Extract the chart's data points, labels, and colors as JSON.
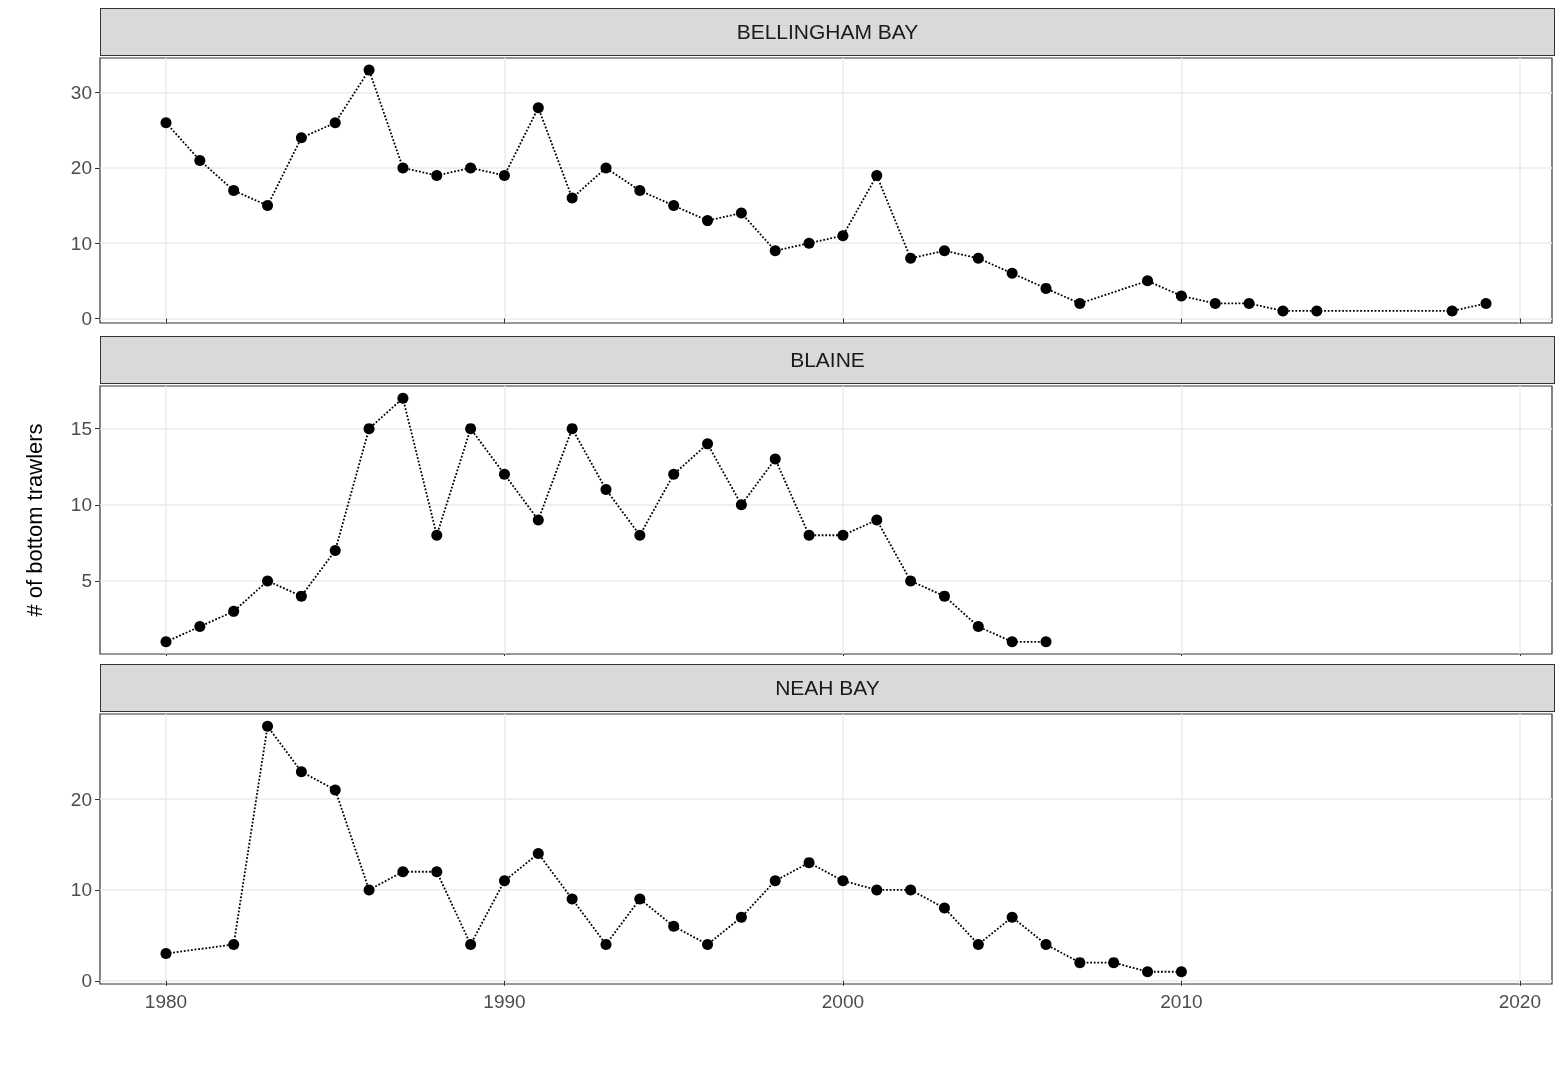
{
  "chart_data": [
    {
      "type": "line",
      "title": "BELLINGHAM BAY",
      "x": [
        1980,
        1981,
        1982,
        1983,
        1984,
        1985,
        1986,
        1987,
        1988,
        1989,
        1990,
        1991,
        1992,
        1993,
        1994,
        1995,
        1996,
        1997,
        1998,
        1999,
        2000,
        2001,
        2002,
        2003,
        2004,
        2005,
        2006,
        2007,
        2009,
        2010,
        2011,
        2012,
        2013,
        2014,
        2018,
        2019
      ],
      "series": [
        {
          "color": "#000000",
          "values": [
            26,
            21,
            17,
            15,
            24,
            26,
            33,
            20,
            19,
            20,
            19,
            28,
            16,
            20,
            17,
            15,
            13,
            14,
            9,
            10,
            11,
            19,
            8,
            9,
            8,
            6,
            4,
            2,
            5,
            3,
            2,
            2,
            1,
            1,
            1,
            2
          ]
        }
      ],
      "xlim": [
        1978.05,
        2020.95
      ],
      "xticks": [
        1980,
        1990,
        2000,
        2010,
        2020
      ],
      "ylim": [
        -0.6,
        34.6
      ],
      "yticks": [
        0,
        10,
        20,
        30
      ],
      "tick_labels": "y",
      "grid": true,
      "marker": "circle",
      "line_style": "dotted"
    },
    {
      "type": "line",
      "title": "BLAINE",
      "ylabel": "# of bottom trawlers",
      "x": [
        1980,
        1981,
        1982,
        1983,
        1984,
        1985,
        1986,
        1987,
        1988,
        1989,
        1990,
        1991,
        1992,
        1993,
        1994,
        1995,
        1996,
        1997,
        1998,
        1999,
        2000,
        2001,
        2002,
        2003,
        2004,
        2005,
        2006
      ],
      "series": [
        {
          "color": "#000000",
          "values": [
            1,
            2,
            3,
            5,
            4,
            7,
            15,
            17,
            8,
            15,
            12,
            9,
            15,
            11,
            8,
            12,
            14,
            10,
            13,
            8,
            8,
            9,
            5,
            4,
            2,
            1,
            1
          ]
        }
      ],
      "xlim": [
        1978.05,
        2020.95
      ],
      "xticks": [
        1980,
        1990,
        2000,
        2010,
        2020
      ],
      "ylim": [
        0.2,
        17.8
      ],
      "yticks": [
        5,
        10,
        15
      ],
      "tick_labels": "y",
      "grid": true,
      "marker": "circle",
      "line_style": "dotted"
    },
    {
      "type": "line",
      "title": "NEAH BAY",
      "x": [
        1980,
        1982,
        1983,
        1984,
        1985,
        1986,
        1987,
        1988,
        1989,
        1990,
        1991,
        1992,
        1993,
        1994,
        1995,
        1996,
        1997,
        1998,
        1999,
        2000,
        2001,
        2002,
        2003,
        2004,
        2005,
        2006,
        2007,
        2008,
        2009,
        2010
      ],
      "series": [
        {
          "color": "#000000",
          "values": [
            3,
            4,
            28,
            23,
            21,
            10,
            12,
            12,
            4,
            11,
            14,
            9,
            4,
            9,
            6,
            4,
            7,
            11,
            13,
            11,
            10,
            10,
            8,
            4,
            7,
            4,
            2,
            2,
            1,
            1
          ]
        }
      ],
      "xlim": [
        1978.05,
        2020.95
      ],
      "xticks": [
        1980,
        1990,
        2000,
        2010,
        2020
      ],
      "ylim": [
        -0.35,
        29.35
      ],
      "yticks": [
        0,
        10,
        20
      ],
      "grid": true,
      "marker": "circle",
      "line_style": "dotted"
    }
  ]
}
